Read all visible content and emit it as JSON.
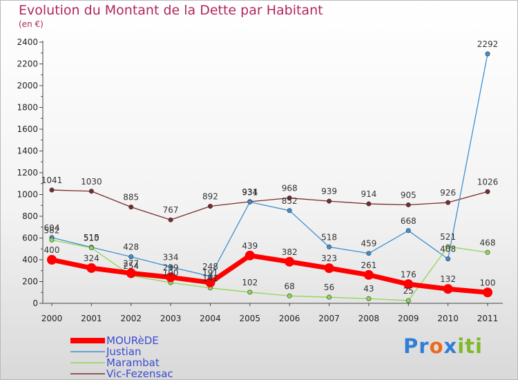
{
  "title": "Evolution du Montant de la Dette par Habitant",
  "subtitle": "(en €)",
  "brand": {
    "part1": "Pr",
    "part2": "o",
    "part3": "x",
    "part4": "iti"
  },
  "chart_data": {
    "type": "line",
    "x": [
      "2000",
      "2001",
      "2002",
      "2003",
      "2004",
      "2005",
      "2006",
      "2007",
      "2008",
      "2009",
      "2010",
      "2011"
    ],
    "ylim": [
      0,
      2400
    ],
    "yticks": [
      0,
      200,
      400,
      600,
      800,
      1000,
      1200,
      1400,
      1600,
      1800,
      2000,
      2200,
      2400
    ],
    "grid": false,
    "legend_position": "bottom-left",
    "series": [
      {
        "name": "Vic-Fezensac",
        "color": "#7a2b2b",
        "width": 1.3,
        "marker": 3.2,
        "values": [
          1041,
          1030,
          885,
          767,
          892,
          934,
          968,
          939,
          914,
          905,
          926,
          1026
        ]
      },
      {
        "name": "Justian",
        "color": "#3e8fd0",
        "width": 1.3,
        "marker": 3.2,
        "values": [
          604,
          515,
          428,
          334,
          248,
          931,
          852,
          518,
          459,
          668,
          408,
          2292
        ]
      },
      {
        "name": "Marambat",
        "color": "#8fd653",
        "width": 1.3,
        "marker": 3.2,
        "values": [
          582,
          510,
          254,
          190,
          141,
          102,
          68,
          56,
          43,
          25,
          521,
          468
        ]
      },
      {
        "name": "MOURèDE",
        "color": "#ff0000",
        "width": 7,
        "marker": 7,
        "values": [
          400,
          324,
          277,
          239,
          191,
          439,
          382,
          323,
          261,
          176,
          132,
          100
        ]
      }
    ],
    "data_labels": [
      [
        "1041",
        "1030",
        "885",
        "767",
        "892",
        "934",
        "968",
        "939",
        "914",
        "905",
        "926",
        "1026"
      ],
      [
        "604",
        "515",
        "428",
        "334",
        "248",
        "931",
        "852",
        "518",
        "459",
        "668",
        "408",
        "2292"
      ],
      [
        "582",
        "510",
        "254",
        "190",
        "141",
        "102",
        "68",
        "56",
        "43",
        "25",
        "521",
        "468"
      ],
      [
        "400",
        "324",
        "277",
        "239",
        "191",
        "439",
        "382",
        "323",
        "261",
        "176",
        "132",
        "100"
      ]
    ],
    "legend": [
      "MOURèDE",
      "Justian",
      "Marambat",
      "Vic-Fezensac"
    ]
  }
}
